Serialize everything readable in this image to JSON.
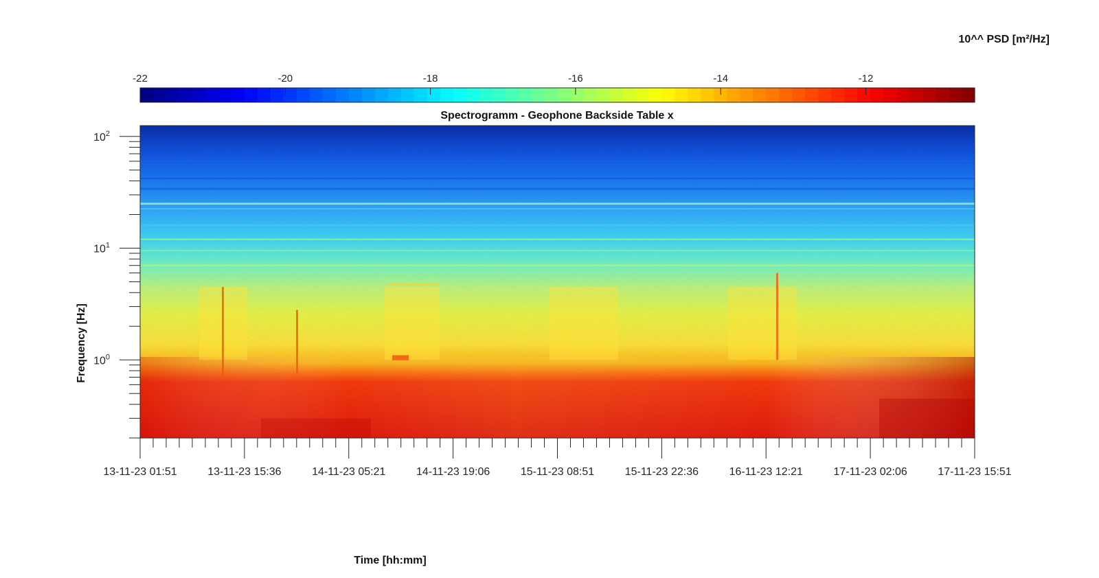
{
  "chart_data": {
    "type": "heatmap",
    "title": "Spectrogramm - Geophone Backside Table x",
    "xlabel": "Time [hh:mm]",
    "ylabel": "Frequency [Hz]",
    "x_tick_labels": [
      "13-11-23 01:51",
      "13-11-23 15:36",
      "14-11-23 05:21",
      "14-11-23 19:06",
      "15-11-23 08:51",
      "15-11-23 22:36",
      "16-11-23 12:21",
      "17-11-23 02:06",
      "17-11-23 15:51"
    ],
    "y_scale": "log",
    "y_range_hz": [
      0.2,
      125
    ],
    "y_tick_labels": [
      {
        "value": 1,
        "base": "10",
        "exp": "0"
      },
      {
        "value": 10,
        "base": "10",
        "exp": "1"
      },
      {
        "value": 100,
        "base": "10",
        "exp": "2"
      }
    ],
    "colorbar": {
      "label": "10^^ PSD [m²/Hz]",
      "colormap": "jet",
      "range": [
        -22,
        -10.5
      ],
      "location": "top",
      "ticks": [
        -22,
        -20,
        -18,
        -16,
        -14,
        -12
      ],
      "tick_labels": [
        "-22",
        "-20",
        "-18",
        "-16",
        "-14",
        "-12"
      ]
    },
    "approx_log10_psd_profile": [
      {
        "freq_hz": 0.25,
        "value": -11.6
      },
      {
        "freq_hz": 0.5,
        "value": -12.0
      },
      {
        "freq_hz": 0.8,
        "value": -13.8
      },
      {
        "freq_hz": 1.5,
        "value": -15.0
      },
      {
        "freq_hz": 4,
        "value": -15.3
      },
      {
        "freq_hz": 10,
        "value": -16.8
      },
      {
        "freq_hz": 30,
        "value": -18.5
      },
      {
        "freq_hz": 100,
        "value": -20.5
      }
    ]
  }
}
